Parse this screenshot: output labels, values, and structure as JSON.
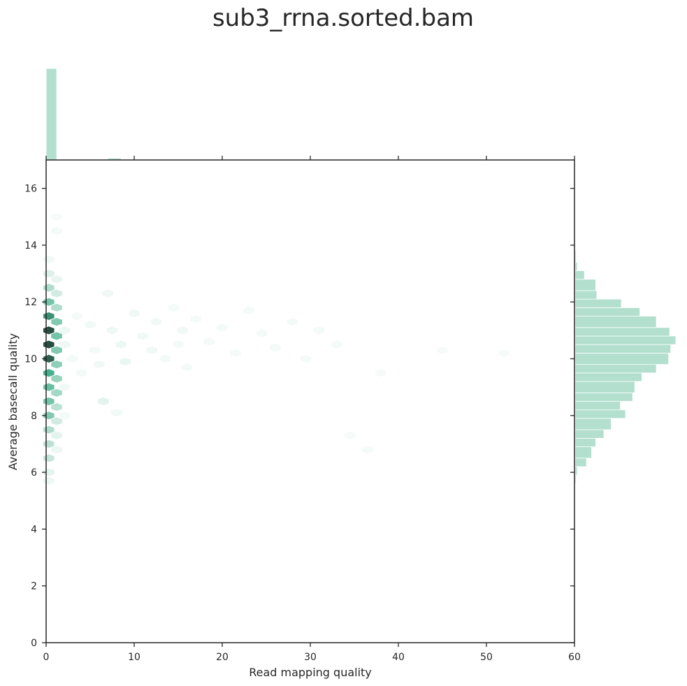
{
  "chart_data": {
    "type": "hexbin-joint",
    "title": "sub3_rrna.sorted.bam",
    "xlabel": "Read mapping quality",
    "ylabel": "Average basecall quality",
    "xlim": [
      0,
      60
    ],
    "ylim": [
      0,
      17
    ],
    "xticks": [
      0,
      10,
      20,
      30,
      40,
      50,
      60
    ],
    "yticks": [
      0,
      2,
      4,
      6,
      8,
      10,
      12,
      14,
      16
    ],
    "colors": {
      "hex": "#47b08c",
      "hex_dark": "#1e2d26",
      "hist": "#b3dfcf",
      "hist_edge": "#ffffff",
      "axis": "#262626"
    },
    "hexbins": [
      {
        "x": 0.3,
        "y": 11.0,
        "d": 0.95
      },
      {
        "x": 0.3,
        "y": 10.5,
        "d": 0.95
      },
      {
        "x": 0.3,
        "y": 10.0,
        "d": 0.92
      },
      {
        "x": 0.3,
        "y": 11.5,
        "d": 0.85
      },
      {
        "x": 0.3,
        "y": 9.5,
        "d": 0.8
      },
      {
        "x": 0.3,
        "y": 12.0,
        "d": 0.6
      },
      {
        "x": 0.3,
        "y": 9.0,
        "d": 0.65
      },
      {
        "x": 0.3,
        "y": 8.5,
        "d": 0.6
      },
      {
        "x": 0.3,
        "y": 8.0,
        "d": 0.55
      },
      {
        "x": 0.3,
        "y": 7.5,
        "d": 0.35
      },
      {
        "x": 0.3,
        "y": 7.0,
        "d": 0.3
      },
      {
        "x": 0.3,
        "y": 12.5,
        "d": 0.35
      },
      {
        "x": 0.3,
        "y": 6.5,
        "d": 0.25
      },
      {
        "x": 0.3,
        "y": 13.0,
        "d": 0.15
      },
      {
        "x": 0.3,
        "y": 6.0,
        "d": 0.12
      },
      {
        "x": 0.3,
        "y": 5.7,
        "d": 0.08
      },
      {
        "x": 0.3,
        "y": 13.5,
        "d": 0.06
      },
      {
        "x": 1.2,
        "y": 11.3,
        "d": 0.55
      },
      {
        "x": 1.2,
        "y": 10.8,
        "d": 0.6
      },
      {
        "x": 1.2,
        "y": 10.3,
        "d": 0.55
      },
      {
        "x": 1.2,
        "y": 9.8,
        "d": 0.5
      },
      {
        "x": 1.2,
        "y": 9.3,
        "d": 0.45
      },
      {
        "x": 1.2,
        "y": 8.8,
        "d": 0.4
      },
      {
        "x": 1.2,
        "y": 8.3,
        "d": 0.3
      },
      {
        "x": 1.2,
        "y": 11.8,
        "d": 0.35
      },
      {
        "x": 1.2,
        "y": 12.3,
        "d": 0.2
      },
      {
        "x": 1.2,
        "y": 7.8,
        "d": 0.2
      },
      {
        "x": 1.2,
        "y": 7.3,
        "d": 0.12
      },
      {
        "x": 1.2,
        "y": 12.8,
        "d": 0.1
      },
      {
        "x": 1.2,
        "y": 6.8,
        "d": 0.08
      },
      {
        "x": 1.2,
        "y": 14.5,
        "d": 0.05
      },
      {
        "x": 1.2,
        "y": 15.0,
        "d": 0.04
      },
      {
        "x": 2.1,
        "y": 11.0,
        "d": 0.08
      },
      {
        "x": 2.1,
        "y": 10.5,
        "d": 0.07
      },
      {
        "x": 2.1,
        "y": 9.0,
        "d": 0.06
      },
      {
        "x": 2.1,
        "y": 8.0,
        "d": 0.05
      },
      {
        "x": 3.0,
        "y": 10.0,
        "d": 0.05
      },
      {
        "x": 3.5,
        "y": 11.5,
        "d": 0.05
      },
      {
        "x": 4.0,
        "y": 9.5,
        "d": 0.05
      },
      {
        "x": 5.0,
        "y": 11.2,
        "d": 0.06
      },
      {
        "x": 5.5,
        "y": 10.3,
        "d": 0.05
      },
      {
        "x": 6.5,
        "y": 8.5,
        "d": 0.12
      },
      {
        "x": 6.0,
        "y": 9.8,
        "d": 0.06
      },
      {
        "x": 7.0,
        "y": 12.3,
        "d": 0.07
      },
      {
        "x": 7.5,
        "y": 11.0,
        "d": 0.07
      },
      {
        "x": 8.5,
        "y": 10.5,
        "d": 0.08
      },
      {
        "x": 9.0,
        "y": 9.9,
        "d": 0.09
      },
      {
        "x": 8.0,
        "y": 8.1,
        "d": 0.06
      },
      {
        "x": 10.0,
        "y": 11.6,
        "d": 0.07
      },
      {
        "x": 11.0,
        "y": 10.8,
        "d": 0.06
      },
      {
        "x": 12.0,
        "y": 10.3,
        "d": 0.06
      },
      {
        "x": 12.5,
        "y": 11.3,
        "d": 0.06
      },
      {
        "x": 13.5,
        "y": 10.0,
        "d": 0.05
      },
      {
        "x": 14.5,
        "y": 11.8,
        "d": 0.05
      },
      {
        "x": 15.5,
        "y": 11.0,
        "d": 0.06
      },
      {
        "x": 15.0,
        "y": 10.5,
        "d": 0.05
      },
      {
        "x": 16.0,
        "y": 9.7,
        "d": 0.05
      },
      {
        "x": 17.0,
        "y": 11.4,
        "d": 0.05
      },
      {
        "x": 18.5,
        "y": 10.6,
        "d": 0.05
      },
      {
        "x": 20.0,
        "y": 11.1,
        "d": 0.05
      },
      {
        "x": 21.5,
        "y": 10.2,
        "d": 0.05
      },
      {
        "x": 23.0,
        "y": 11.7,
        "d": 0.05
      },
      {
        "x": 24.5,
        "y": 10.9,
        "d": 0.05
      },
      {
        "x": 26.0,
        "y": 10.4,
        "d": 0.05
      },
      {
        "x": 28.0,
        "y": 11.3,
        "d": 0.05
      },
      {
        "x": 29.5,
        "y": 10.0,
        "d": 0.05
      },
      {
        "x": 31.0,
        "y": 11.0,
        "d": 0.05
      },
      {
        "x": 33.0,
        "y": 10.5,
        "d": 0.05
      },
      {
        "x": 36.5,
        "y": 6.8,
        "d": 0.05
      },
      {
        "x": 38.0,
        "y": 9.5,
        "d": 0.04
      },
      {
        "x": 34.5,
        "y": 7.3,
        "d": 0.04
      },
      {
        "x": 45.0,
        "y": 10.3,
        "d": 0.04
      },
      {
        "x": 52.0,
        "y": 10.2,
        "d": 0.04
      }
    ],
    "x_marginal": [
      {
        "bin": [
          0.0,
          1.2
        ],
        "count": 100
      },
      {
        "bin": [
          7.0,
          8.5
        ],
        "count": 2
      }
    ],
    "y_marginal": [
      {
        "bin": [
          5.6,
          5.9
        ],
        "count": 1
      },
      {
        "bin": [
          5.9,
          6.2
        ],
        "count": 2
      },
      {
        "bin": [
          6.2,
          6.5
        ],
        "count": 11
      },
      {
        "bin": [
          6.5,
          6.9
        ],
        "count": 16
      },
      {
        "bin": [
          6.9,
          7.2
        ],
        "count": 20
      },
      {
        "bin": [
          7.2,
          7.5
        ],
        "count": 28
      },
      {
        "bin": [
          7.5,
          7.9
        ],
        "count": 35
      },
      {
        "bin": [
          7.9,
          8.2
        ],
        "count": 49
      },
      {
        "bin": [
          8.2,
          8.5
        ],
        "count": 44
      },
      {
        "bin": [
          8.5,
          8.8
        ],
        "count": 56
      },
      {
        "bin": [
          8.8,
          9.2
        ],
        "count": 58
      },
      {
        "bin": [
          9.2,
          9.5
        ],
        "count": 65
      },
      {
        "bin": [
          9.5,
          9.8
        ],
        "count": 79
      },
      {
        "bin": [
          9.8,
          10.2
        ],
        "count": 91
      },
      {
        "bin": [
          10.2,
          10.5
        ],
        "count": 93
      },
      {
        "bin": [
          10.5,
          10.8
        ],
        "count": 98
      },
      {
        "bin": [
          10.8,
          11.1
        ],
        "count": 92
      },
      {
        "bin": [
          11.1,
          11.5
        ],
        "count": 79
      },
      {
        "bin": [
          11.5,
          11.8
        ],
        "count": 63
      },
      {
        "bin": [
          11.8,
          12.1
        ],
        "count": 45
      },
      {
        "bin": [
          12.1,
          12.4
        ],
        "count": 21
      },
      {
        "bin": [
          12.4,
          12.8
        ],
        "count": 20
      },
      {
        "bin": [
          12.8,
          13.1
        ],
        "count": 9
      },
      {
        "bin": [
          13.1,
          13.4
        ],
        "count": 2
      },
      {
        "bin": [
          13.4,
          13.8
        ],
        "count": 1
      }
    ]
  }
}
